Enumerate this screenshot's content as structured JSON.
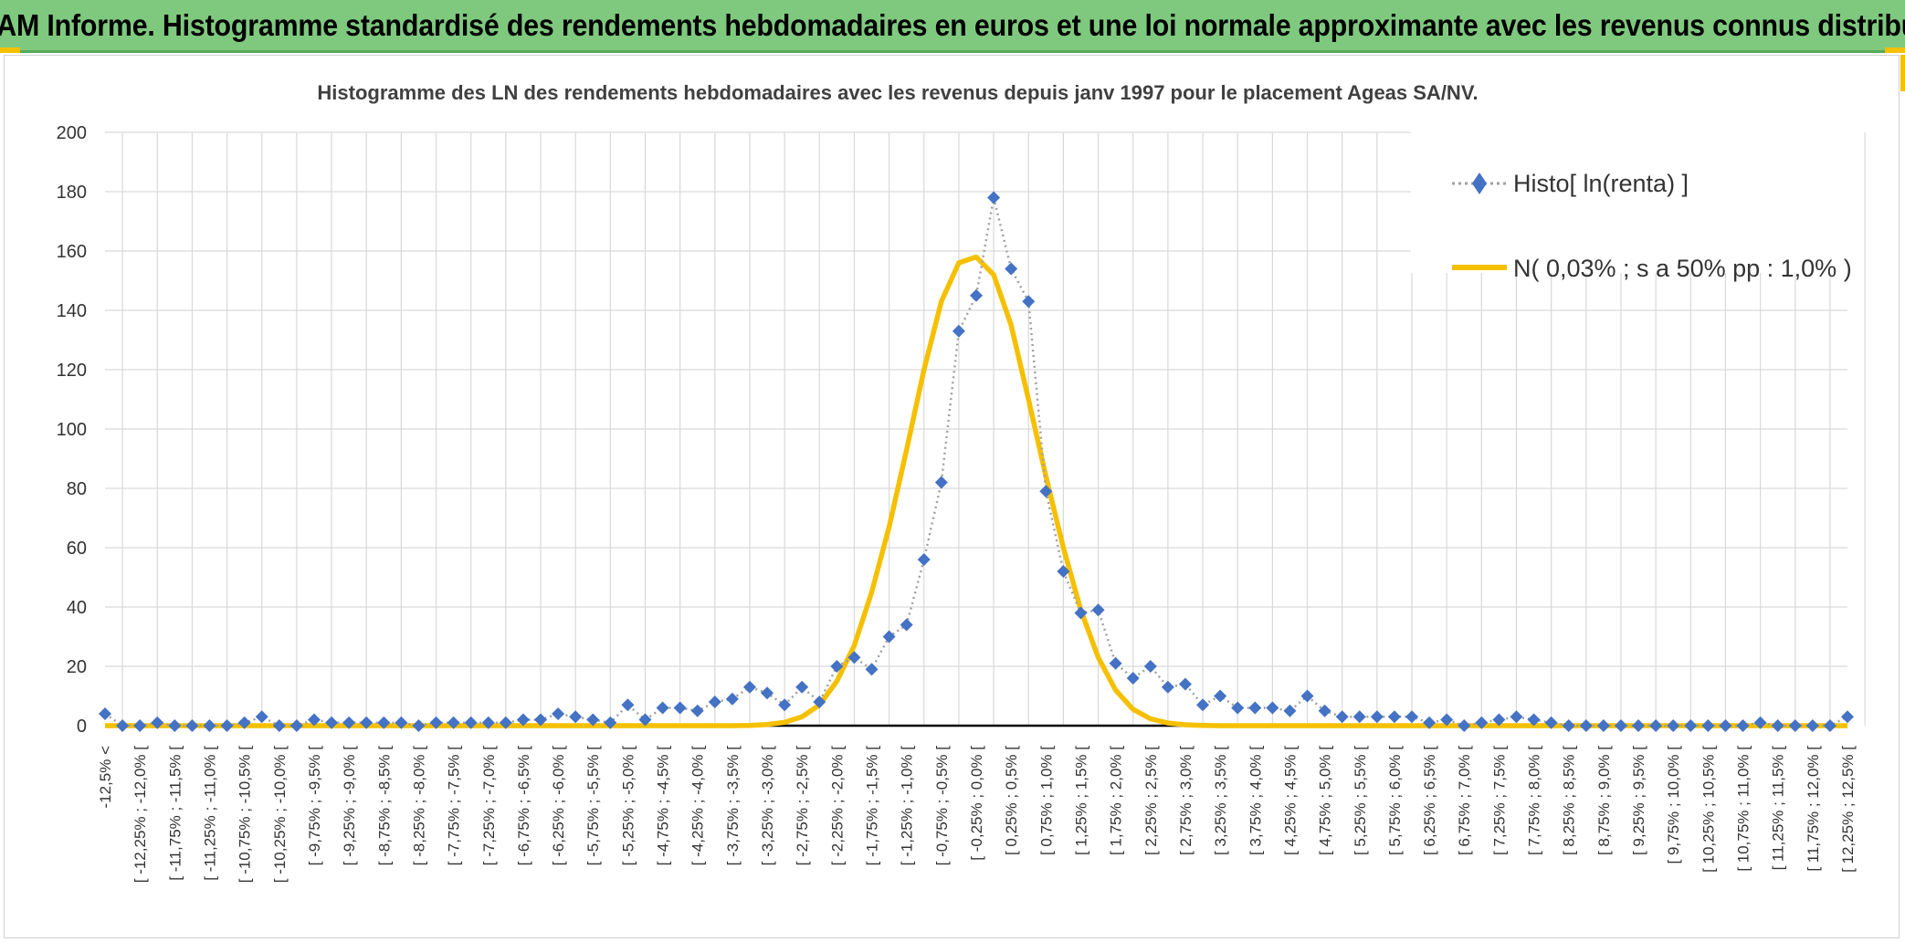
{
  "header": {
    "title": "ADAM Informe. Histogramme standardisé des rendements hebdomadaires en euros et une loi normale approximante avec les revenus connus distribués"
  },
  "colors": {
    "banner": "#7fc97f",
    "accent": "#f5c000",
    "histo_marker": "#4472c4",
    "histo_line": "#a0a0a0",
    "normal_line": "#f5c000",
    "grid": "#d9d9d9"
  },
  "chart_data": {
    "type": "line",
    "title": "Histogramme des LN des rendements hebdomadaires avec les revenus depuis janv 1997 pour le placement Ageas SA/NV.",
    "xlabel": "",
    "ylabel": "",
    "ylim": [
      0,
      200
    ],
    "yticks": [
      "0",
      "20",
      "40",
      "60",
      "80",
      "100",
      "120",
      "140",
      "160",
      "180",
      "200"
    ],
    "legend_position": "top-right",
    "categories": [
      "-12,5% <",
      "[ -12,25% ; -12,0% [",
      "[ -11,75% ; -11,5% [",
      "[ -11,25% ; -11,0% [",
      "[ -10,75% ; -10,5% [",
      "[ -10,25% ; -10,0% [",
      "[ -9,75% ; -9,5% [",
      "[ -9,25% ; -9,0% [",
      "[ -8,75% ; -8,5% [",
      "[ -8,25% ; -8,0% [",
      "[ -7,75% ; -7,5% [",
      "[ -7,25% ; -7,0% [",
      "[ -6,75% ; -6,5% [",
      "[ -6,25% ; -6,0% [",
      "[ -5,75% ; -5,5% [",
      "[ -5,25% ; -5,0% [",
      "[ -4,75% ; -4,5% [",
      "[ -4,25% ; -4,0% [",
      "[ -3,75% ; -3,5% [",
      "[ -3,25% ; -3,0% [",
      "[ -2,75% ; -2,5% [",
      "[ -2,25% ; -2,0% [",
      "[ -1,75% ; -1,5% [",
      "[ -1,25% ; -1,0% [",
      "[ -0,75% ; -0,5% [",
      "[ -0,25% ; 0,0% [",
      "[ 0,25% ; 0,5% [",
      "[ 0,75% ; 1,0% [",
      "[ 1,25% ; 1,5% [",
      "[ 1,75% ; 2,0% [",
      "[ 2,25% ; 2,5% [",
      "[ 2,75% ; 3,0% [",
      "[ 3,25% ; 3,5% [",
      "[ 3,75% ; 4,0% [",
      "[ 4,25% ; 4,5% [",
      "[ 4,75% ; 5,0% [",
      "[ 5,25% ; 5,5% [",
      "[ 5,75% ; 6,0% [",
      "[ 6,25% ; 6,5% [",
      "[ 6,75% ; 7,0% [",
      "[ 7,25% ; 7,5% [",
      "[ 7,75% ; 8,0% [",
      "[ 8,25% ; 8,5% [",
      "[ 8,75% ; 9,0% [",
      "[ 9,25% ; 9,5% [",
      "[ 9,75% ; 10,0% [",
      "[ 10,25% ; 10,5% [",
      "[ 10,75% ; 11,0% [",
      "[ 11,25% ; 11,5% [",
      "[ 11,75% ; 12,0% [",
      "[ 12,25% ; 12,5% ["
    ],
    "x": [
      -12.5,
      -12.25,
      -12,
      -11.75,
      -11.5,
      -11.25,
      -11,
      -10.75,
      -10.5,
      -10.25,
      -10,
      -9.75,
      -9.5,
      -9.25,
      -9,
      -8.75,
      -8.5,
      -8.25,
      -8,
      -7.75,
      -7.5,
      -7.25,
      -7,
      -6.75,
      -6.5,
      -6.25,
      -6,
      -5.75,
      -5.5,
      -5.25,
      -5,
      -4.75,
      -4.5,
      -4.25,
      -4,
      -3.75,
      -3.5,
      -3.25,
      -3,
      -2.75,
      -2.5,
      -2.25,
      -2,
      -1.75,
      -1.5,
      -1.25,
      -1,
      -0.75,
      -0.5,
      -0.25,
      0,
      0.25,
      0.5,
      0.75,
      1,
      1.25,
      1.5,
      1.75,
      2,
      2.25,
      2.5,
      2.75,
      3,
      3.25,
      3.5,
      3.75,
      4,
      4.25,
      4.5,
      4.75,
      5,
      5.25,
      5.5,
      5.75,
      6,
      6.25,
      6.5,
      6.75,
      7,
      7.25,
      7.5,
      7.75,
      8,
      8.25,
      8.5,
      8.75,
      9,
      9.25,
      9.5,
      9.75,
      10,
      10.25,
      10.5,
      10.75,
      11,
      11.25,
      11.5,
      11.75,
      12,
      12.25,
      12.5
    ],
    "series": [
      {
        "name": "Histo[ ln(renta) ]",
        "style": "dotted line with diamond markers",
        "values": [
          4,
          0,
          0,
          1,
          0,
          0,
          0,
          0,
          1,
          3,
          0,
          0,
          2,
          1,
          1,
          1,
          1,
          1,
          0,
          1,
          1,
          1,
          1,
          1,
          2,
          2,
          4,
          3,
          2,
          1,
          7,
          2,
          6,
          6,
          5,
          8,
          9,
          13,
          11,
          7,
          13,
          8,
          20,
          23,
          19,
          30,
          34,
          56,
          82,
          133,
          145,
          178,
          154,
          143,
          79,
          52,
          38,
          39,
          21,
          16,
          20,
          13,
          14,
          7,
          10,
          6,
          6,
          6,
          5,
          10,
          5,
          3,
          3,
          3,
          3,
          3,
          1,
          2,
          0,
          1,
          2,
          3,
          2,
          1,
          0,
          0,
          0,
          0,
          0,
          0,
          0,
          0,
          0,
          0,
          0,
          1,
          0,
          0,
          0,
          0,
          3
        ]
      },
      {
        "name": "N( 0,03% ; s a 50% pp : 1,0% )",
        "style": "solid line",
        "values": [
          0,
          0,
          0,
          0,
          0,
          0,
          0,
          0,
          0,
          0,
          0,
          0,
          0,
          0,
          0,
          0,
          0,
          0,
          0,
          0,
          0,
          0,
          0,
          0,
          0,
          0,
          0,
          0,
          0,
          0,
          0,
          0,
          0,
          0,
          0,
          0,
          0,
          0.1,
          0.4,
          1.1,
          3,
          7,
          15,
          27,
          45,
          67,
          93,
          120,
          143,
          156,
          158,
          152,
          135,
          110,
          84,
          60,
          39,
          23,
          12,
          5.5,
          2.3,
          0.9,
          0.3,
          0.1,
          0,
          0,
          0,
          0,
          0,
          0,
          0,
          0,
          0,
          0,
          0,
          0,
          0,
          0,
          0,
          0,
          0,
          0,
          0,
          0,
          0,
          0,
          0,
          0,
          0,
          0,
          0,
          0,
          0,
          0,
          0,
          0,
          0,
          0,
          0,
          0,
          0
        ]
      }
    ]
  }
}
